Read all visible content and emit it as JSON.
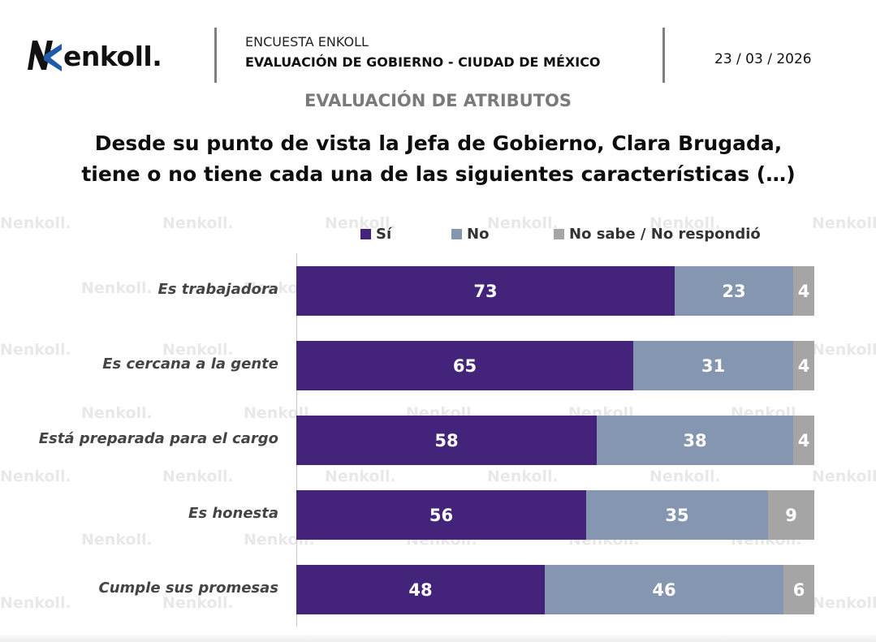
{
  "header": {
    "logo_text": "enkoll.",
    "kicker": "ENCUESTA ENKOLL",
    "title": "EVALUACIÓN DE GOBIERNO - CIUDAD DE MÉXICO",
    "date": "23 / 03 / 2026"
  },
  "section_title": "EVALUACIÓN DE ATRIBUTOS",
  "question_line1": "Desde su punto de vista la Jefa de Gobierno, Clara Brugada,",
  "question_line2": "tiene o no tiene cada una de las siguientes características (…)",
  "watermark_text": "enkoll.",
  "colors": {
    "si": "#43247a",
    "no": "#8496b0",
    "ns": "#a5a5a5"
  },
  "chart_data": {
    "type": "bar",
    "orientation": "horizontal",
    "stacked": true,
    "categories": [
      "Es trabajadora",
      "Es cercana a la gente",
      "Está preparada para el cargo",
      "Es honesta",
      "Cumple sus promesas"
    ],
    "series": [
      {
        "name": "Sí",
        "values": [
          73,
          65,
          58,
          56,
          48
        ]
      },
      {
        "name": "No",
        "values": [
          23,
          31,
          38,
          35,
          46
        ]
      },
      {
        "name": "No sabe / No respondió",
        "values": [
          4,
          4,
          4,
          9,
          6
        ]
      }
    ],
    "xlim": [
      0,
      100
    ],
    "legend": "top",
    "grid": false
  }
}
